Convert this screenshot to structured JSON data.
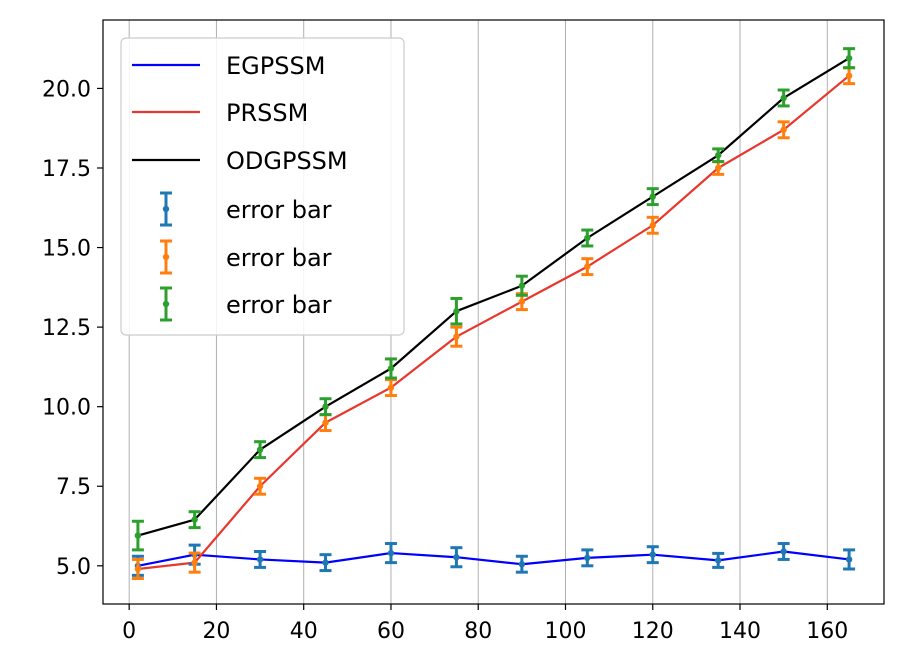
{
  "chart_data": {
    "type": "line",
    "title": "",
    "xlabel": "",
    "ylabel": "",
    "xlim": [
      -6,
      173
    ],
    "ylim": [
      3.8,
      22.15
    ],
    "xticks": [
      0,
      20,
      40,
      60,
      80,
      100,
      120,
      140,
      160
    ],
    "xtick_labels": [
      "0",
      "20",
      "40",
      "60",
      "80",
      "100",
      "120",
      "140",
      "160"
    ],
    "yticks": [
      5.0,
      7.5,
      10.0,
      12.5,
      15.0,
      17.5,
      20.0
    ],
    "ytick_labels": [
      "5.0",
      "7.5",
      "10.0",
      "12.5",
      "15.0",
      "17.5",
      "20.0"
    ],
    "grid": "vertical",
    "legend_position": "upper-left",
    "x": [
      2,
      15,
      30,
      45,
      60,
      75,
      90,
      105,
      120,
      135,
      150,
      165
    ],
    "series": [
      {
        "name": "EGPSSM",
        "line_color": "#0000ff",
        "errorbar_color": "#1f77b4",
        "values": [
          5.0,
          5.35,
          5.2,
          5.1,
          5.4,
          5.27,
          5.05,
          5.25,
          5.35,
          5.17,
          5.45,
          5.2
        ],
        "errors": [
          0.3,
          0.3,
          0.25,
          0.25,
          0.3,
          0.3,
          0.25,
          0.25,
          0.25,
          0.22,
          0.25,
          0.3
        ]
      },
      {
        "name": "PRSSM",
        "line_color": "#e8372c",
        "errorbar_color": "#ff7f0e",
        "values": [
          4.9,
          5.1,
          7.5,
          9.5,
          10.6,
          12.2,
          13.3,
          14.4,
          15.7,
          17.5,
          18.7,
          20.4
        ],
        "errors": [
          0.3,
          0.3,
          0.25,
          0.25,
          0.25,
          0.3,
          0.25,
          0.25,
          0.25,
          0.2,
          0.25,
          0.25
        ]
      },
      {
        "name": "ODGPSSM",
        "line_color": "#000000",
        "errorbar_color": "#2ca02c",
        "values": [
          5.95,
          6.45,
          8.65,
          10.0,
          11.2,
          13.0,
          13.8,
          15.3,
          16.6,
          17.9,
          19.7,
          20.95
        ],
        "errors": [
          0.45,
          0.25,
          0.25,
          0.25,
          0.3,
          0.4,
          0.3,
          0.25,
          0.25,
          0.2,
          0.25,
          0.3
        ]
      }
    ],
    "legend": [
      {
        "label": "EGPSSM",
        "kind": "line",
        "color": "#0000ff"
      },
      {
        "label": "PRSSM",
        "kind": "line",
        "color": "#e8372c"
      },
      {
        "label": "ODGPSSM",
        "kind": "line",
        "color": "#000000"
      },
      {
        "label": "error bar",
        "kind": "errorbar",
        "color": "#1f77b4"
      },
      {
        "label": "error bar",
        "kind": "errorbar",
        "color": "#ff7f0e"
      },
      {
        "label": "error bar",
        "kind": "errorbar",
        "color": "#2ca02c"
      }
    ]
  }
}
